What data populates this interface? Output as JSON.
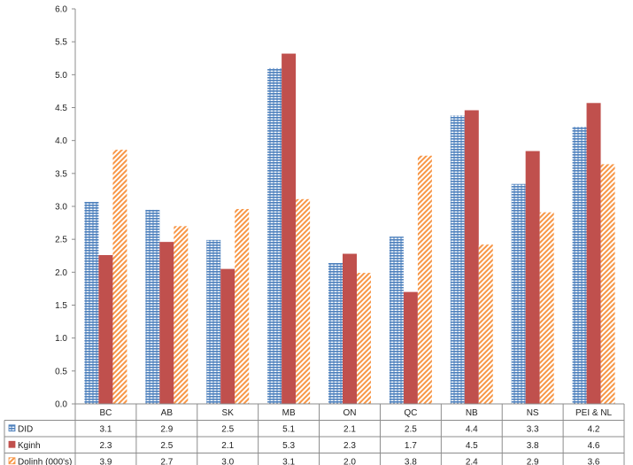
{
  "chart_data": {
    "type": "bar",
    "categories": [
      "BC",
      "AB",
      "SK",
      "MB",
      "ON",
      "QC",
      "NB",
      "NS",
      "PEI & NL"
    ],
    "series": [
      {
        "name": "DID",
        "values": [
          3.07,
          2.95,
          2.49,
          5.1,
          2.14,
          2.54,
          4.38,
          3.34,
          4.21
        ],
        "table": [
          "3.1",
          "2.9",
          "2.5",
          "5.1",
          "2.1",
          "2.5",
          "4.4",
          "3.3",
          "4.2"
        ],
        "color": "#4f81bd",
        "pattern": "dots"
      },
      {
        "name": "Kginh",
        "values": [
          2.26,
          2.46,
          2.05,
          5.32,
          2.28,
          1.7,
          4.46,
          3.84,
          4.57
        ],
        "table": [
          "2.3",
          "2.5",
          "2.1",
          "5.3",
          "2.3",
          "1.7",
          "4.5",
          "3.8",
          "4.6"
        ],
        "color": "#c0504d",
        "pattern": "solid"
      },
      {
        "name": "Dolinh (000's)",
        "values": [
          3.86,
          2.7,
          2.96,
          3.11,
          1.99,
          3.77,
          2.42,
          2.91,
          3.64
        ],
        "table": [
          "3.9",
          "2.7",
          "3.0",
          "3.1",
          "2.0",
          "3.8",
          "2.4",
          "2.9",
          "3.6"
        ],
        "color": "#f79646",
        "pattern": "diagonal"
      }
    ],
    "y_ticks": [
      "0.0",
      "0.5",
      "1.0",
      "1.5",
      "2.0",
      "2.5",
      "3.0",
      "3.5",
      "4.0",
      "4.5",
      "5.0",
      "5.5",
      "6.0"
    ],
    "ylim": [
      0,
      6
    ],
    "grid": false,
    "legend": "data-table-left"
  }
}
